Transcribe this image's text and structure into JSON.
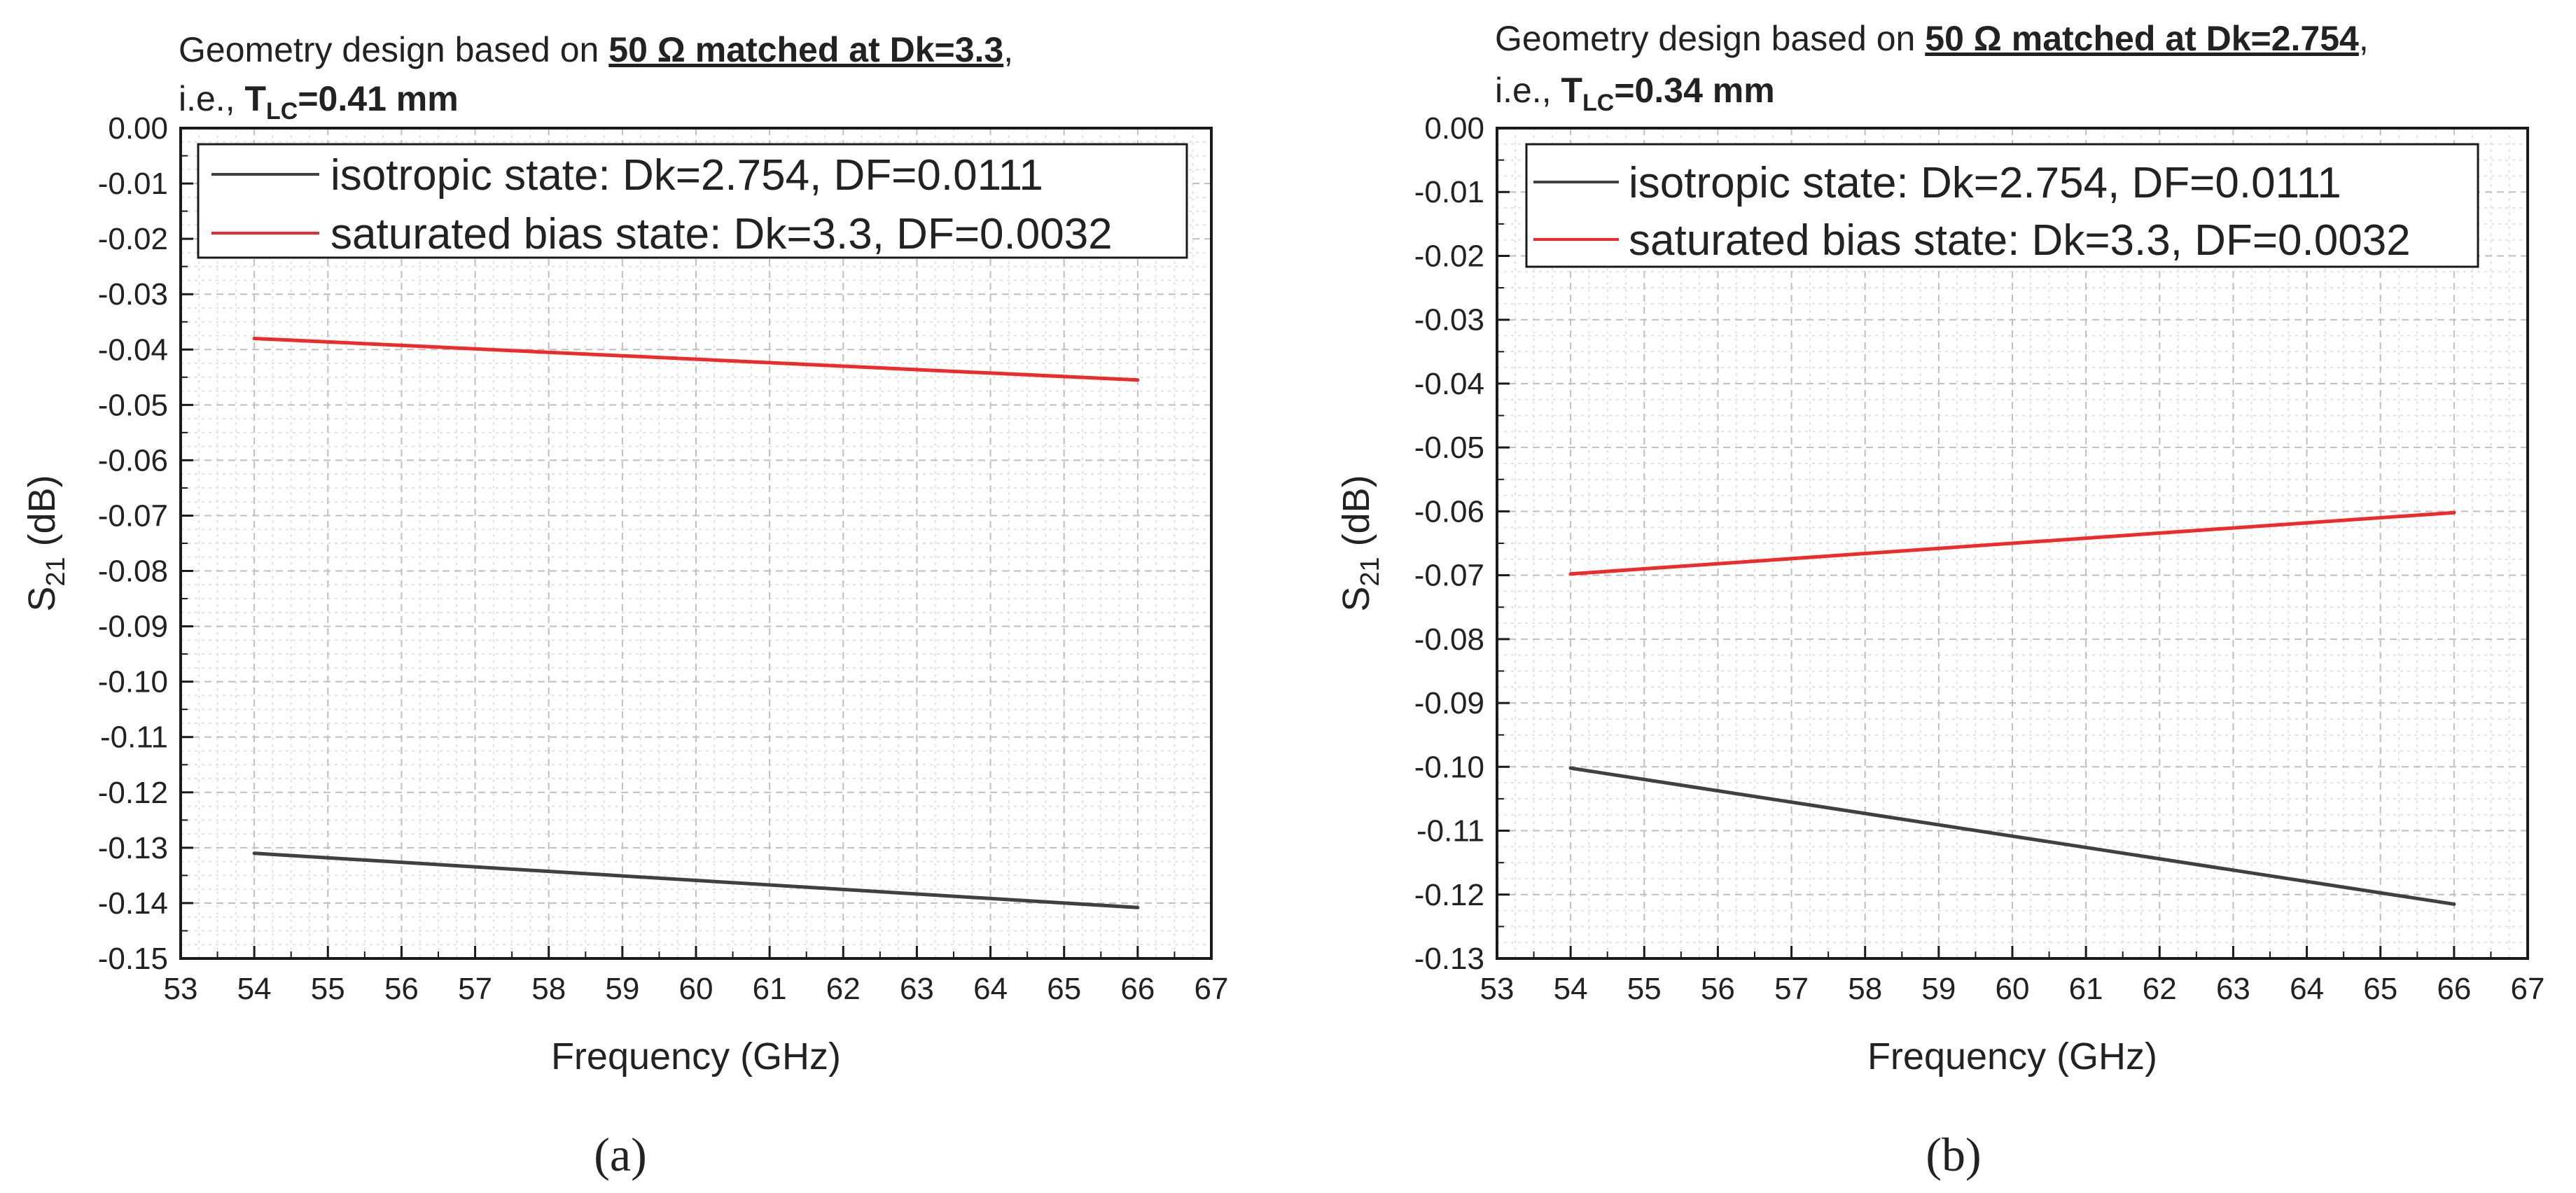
{
  "colors": {
    "isotropic": "#404040",
    "saturated": "#ee2a2a",
    "major_grid": "#bfbfbf",
    "minor_grid": "#e2e2e2",
    "axis": "#1a1a1a"
  },
  "chart_data": [
    {
      "type": "line",
      "panel_label": "(a)",
      "title": {
        "line1_prefix": "Geometry design based on ",
        "line1_bold": "50 Ω matched at Dk=3.3",
        "line1_suffix": ",",
        "line2_prefix": "i.e., ",
        "t_main": "T",
        "t_sub": "LC",
        "t_value": "=0.41 mm"
      },
      "xlabel": "Frequency (GHz)",
      "ylabel_main": "S",
      "ylabel_sub": "21",
      "ylabel_suffix": " (dB)",
      "xlim": [
        53,
        67
      ],
      "ylim": [
        -0.15,
        0.0
      ],
      "xticks": [
        53,
        54,
        55,
        56,
        57,
        58,
        59,
        60,
        61,
        62,
        63,
        64,
        65,
        66,
        67
      ],
      "yticks": [
        0.0,
        -0.01,
        -0.02,
        -0.03,
        -0.04,
        -0.05,
        -0.06,
        -0.07,
        -0.08,
        -0.09,
        -0.1,
        -0.11,
        -0.12,
        -0.13,
        -0.14,
        -0.15
      ],
      "ytick_labels": [
        "0.00",
        "-0.01",
        "-0.02",
        "-0.03",
        "-0.04",
        "-0.05",
        "-0.06",
        "-0.07",
        "-0.08",
        "-0.09",
        "-0.10",
        "-0.11",
        "-0.12",
        "-0.13",
        "-0.14",
        "-0.15"
      ],
      "grid": true,
      "legend_position": "top-left",
      "series": [
        {
          "name": "isotropic state: Dk=2.754, DF=0.0111",
          "color_key": "isotropic",
          "x": [
            54,
            66
          ],
          "y": [
            -0.131,
            -0.1408
          ]
        },
        {
          "name": "saturated bias state: Dk=3.3, DF=0.0032",
          "color_key": "saturated",
          "x": [
            54,
            66
          ],
          "y": [
            -0.038,
            -0.0455
          ]
        }
      ]
    },
    {
      "type": "line",
      "panel_label": "(b)",
      "title": {
        "line1_prefix": "Geometry design based on ",
        "line1_bold": "50 Ω matched at Dk=2.754",
        "line1_suffix": ",",
        "line2_prefix": "i.e., ",
        "t_main": "T",
        "t_sub": "LC",
        "t_value": "=0.34 mm"
      },
      "xlabel": "Frequency (GHz)",
      "ylabel_main": "S",
      "ylabel_sub": "21",
      "ylabel_suffix": " (dB)",
      "xlim": [
        53,
        67
      ],
      "ylim": [
        -0.13,
        0.0
      ],
      "xticks": [
        53,
        54,
        55,
        56,
        57,
        58,
        59,
        60,
        61,
        62,
        63,
        64,
        65,
        66,
        67
      ],
      "yticks": [
        0.0,
        -0.01,
        -0.02,
        -0.03,
        -0.04,
        -0.05,
        -0.06,
        -0.07,
        -0.08,
        -0.09,
        -0.1,
        -0.11,
        -0.12,
        -0.13
      ],
      "ytick_labels": [
        "0.00",
        "-0.01",
        "-0.02",
        "-0.03",
        "-0.04",
        "-0.05",
        "-0.06",
        "-0.07",
        "-0.08",
        "-0.09",
        "-0.10",
        "-0.11",
        "-0.12",
        "-0.13"
      ],
      "grid": true,
      "legend_position": "top-left",
      "series": [
        {
          "name": "isotropic state: Dk=2.754, DF=0.0111",
          "color_key": "isotropic",
          "x": [
            54,
            66
          ],
          "y": [
            -0.1002,
            -0.1215
          ]
        },
        {
          "name": "saturated bias state: Dk=3.3, DF=0.0032",
          "color_key": "saturated",
          "x": [
            54,
            66
          ],
          "y": [
            -0.0698,
            -0.0602
          ]
        }
      ]
    }
  ]
}
